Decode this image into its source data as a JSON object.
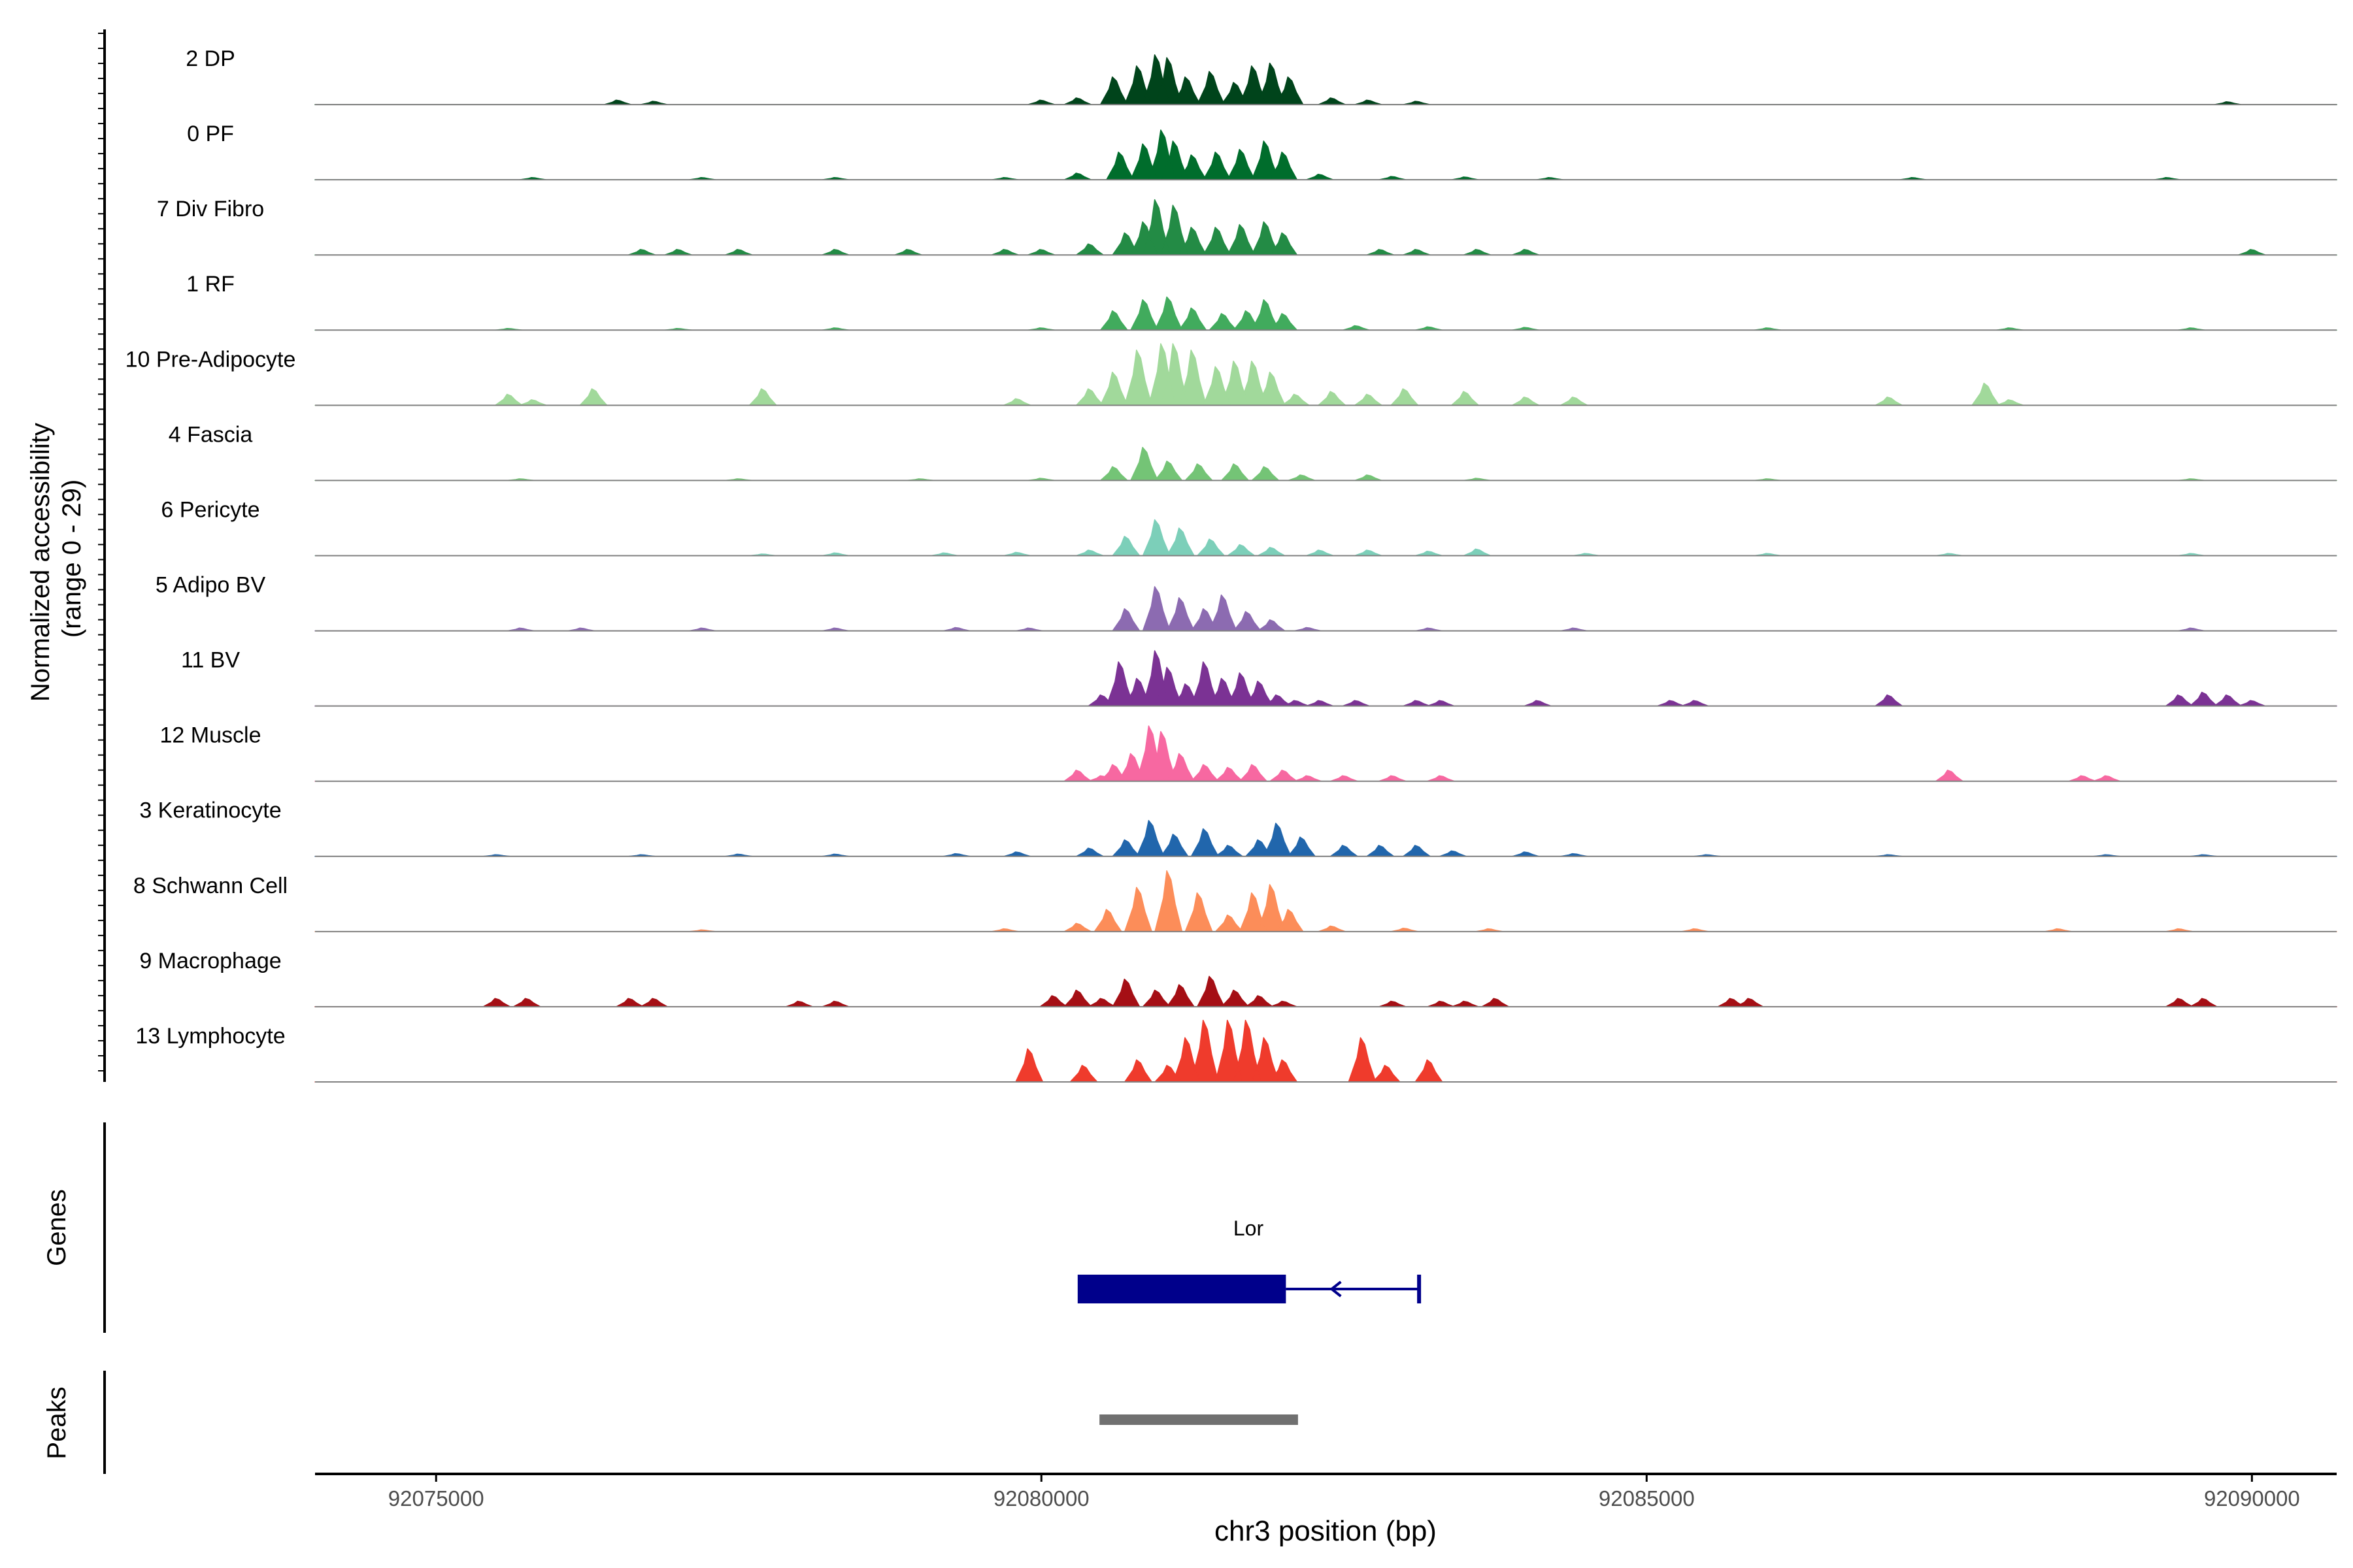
{
  "chart_data": {
    "type": "area",
    "title": "",
    "ylabel_line1": "Normalized accessibility",
    "ylabel_line2": "(range 0 - 29)",
    "xlabel": "chr3 position (bp)",
    "xlim": [
      92074000,
      92090700
    ],
    "xticks": [
      92075000,
      92080000,
      92085000,
      92090000
    ],
    "xtick_labels": [
      "92075000",
      "92080000",
      "92085000",
      "92090000"
    ],
    "ylim": [
      0,
      29
    ],
    "grid": false,
    "tracks": [
      {
        "name": "2 DP",
        "color": "#00441b",
        "peaks": [
          [
            92076500,
            0.8
          ],
          [
            92076800,
            0.6
          ],
          [
            92080000,
            0.8
          ],
          [
            92080300,
            1.2
          ],
          [
            92080600,
            5
          ],
          [
            92080800,
            7
          ],
          [
            92080950,
            9
          ],
          [
            92081050,
            8.5
          ],
          [
            92081200,
            5
          ],
          [
            92081400,
            6
          ],
          [
            92081600,
            4
          ],
          [
            92081750,
            7
          ],
          [
            92081900,
            7.5
          ],
          [
            92082050,
            5
          ],
          [
            92082400,
            1.2
          ],
          [
            92082700,
            0.8
          ],
          [
            92083100,
            0.6
          ],
          [
            92089800,
            0.5
          ]
        ]
      },
      {
        "name": "0 PF",
        "color": "#006d2c",
        "peaks": [
          [
            92075800,
            0.4
          ],
          [
            92077200,
            0.4
          ],
          [
            92078300,
            0.4
          ],
          [
            92079700,
            0.4
          ],
          [
            92080300,
            1.2
          ],
          [
            92080650,
            5
          ],
          [
            92080850,
            6.5
          ],
          [
            92081000,
            9
          ],
          [
            92081100,
            7
          ],
          [
            92081250,
            4.5
          ],
          [
            92081450,
            5
          ],
          [
            92081650,
            5.5
          ],
          [
            92081850,
            7
          ],
          [
            92082000,
            5
          ],
          [
            92082300,
            1
          ],
          [
            92082900,
            0.6
          ],
          [
            92083500,
            0.5
          ],
          [
            92084200,
            0.4
          ],
          [
            92087200,
            0.4
          ],
          [
            92089300,
            0.4
          ]
        ]
      },
      {
        "name": "7 Div Fibro",
        "color": "#238b45",
        "peaks": [
          [
            92076700,
            1
          ],
          [
            92077000,
            1
          ],
          [
            92077500,
            1
          ],
          [
            92078300,
            1
          ],
          [
            92078900,
            1
          ],
          [
            92079700,
            1
          ],
          [
            92080000,
            1
          ],
          [
            92080400,
            2
          ],
          [
            92080700,
            4
          ],
          [
            92080850,
            6
          ],
          [
            92080950,
            10
          ],
          [
            92081100,
            9
          ],
          [
            92081250,
            5
          ],
          [
            92081450,
            5
          ],
          [
            92081650,
            5.5
          ],
          [
            92081850,
            6
          ],
          [
            92082000,
            4
          ],
          [
            92082800,
            1
          ],
          [
            92083100,
            1
          ],
          [
            92083600,
            1
          ],
          [
            92084000,
            1
          ],
          [
            92090000,
            1
          ]
        ]
      },
      {
        "name": "1 RF",
        "color": "#41ab5d",
        "peaks": [
          [
            92075600,
            0.3
          ],
          [
            92077000,
            0.3
          ],
          [
            92078300,
            0.4
          ],
          [
            92080000,
            0.4
          ],
          [
            92080600,
            3.5
          ],
          [
            92080850,
            5.5
          ],
          [
            92081050,
            6
          ],
          [
            92081250,
            4
          ],
          [
            92081500,
            3
          ],
          [
            92081700,
            3.5
          ],
          [
            92081850,
            5.5
          ],
          [
            92082000,
            3
          ],
          [
            92082600,
            0.8
          ],
          [
            92083200,
            0.6
          ],
          [
            92084000,
            0.5
          ],
          [
            92086000,
            0.4
          ],
          [
            92088000,
            0.4
          ],
          [
            92089500,
            0.4
          ]
        ]
      },
      {
        "name": "10 Pre-Adipocyte",
        "color": "#a1d99b",
        "peaks": [
          [
            92075600,
            2
          ],
          [
            92075800,
            1
          ],
          [
            92076300,
            3
          ],
          [
            92077700,
            3
          ],
          [
            92079800,
            1.2
          ],
          [
            92080400,
            3
          ],
          [
            92080600,
            6
          ],
          [
            92080800,
            10
          ],
          [
            92081000,
            13
          ],
          [
            92081100,
            16
          ],
          [
            92081250,
            10
          ],
          [
            92081450,
            7
          ],
          [
            92081600,
            8
          ],
          [
            92081750,
            8
          ],
          [
            92081900,
            6
          ],
          [
            92082100,
            2
          ],
          [
            92082400,
            2.5
          ],
          [
            92082700,
            2
          ],
          [
            92083000,
            3
          ],
          [
            92083500,
            2.5
          ],
          [
            92084000,
            1.5
          ],
          [
            92084400,
            1.5
          ],
          [
            92087000,
            1.5
          ],
          [
            92087800,
            4
          ],
          [
            92088000,
            1
          ]
        ]
      },
      {
        "name": "4 Fascia",
        "color": "#74c476",
        "peaks": [
          [
            92075700,
            0.3
          ],
          [
            92077500,
            0.3
          ],
          [
            92079000,
            0.3
          ],
          [
            92080000,
            0.4
          ],
          [
            92080600,
            2.5
          ],
          [
            92080850,
            6
          ],
          [
            92081050,
            3.5
          ],
          [
            92081300,
            3
          ],
          [
            92081600,
            3
          ],
          [
            92081850,
            2.5
          ],
          [
            92082150,
            1
          ],
          [
            92082700,
            1
          ],
          [
            92083600,
            0.4
          ],
          [
            92086000,
            0.3
          ],
          [
            92089500,
            0.3
          ]
        ]
      },
      {
        "name": "6 Pericyte",
        "color": "#7ccfb9",
        "peaks": [
          [
            92077700,
            0.3
          ],
          [
            92078300,
            0.5
          ],
          [
            92079200,
            0.5
          ],
          [
            92079800,
            0.6
          ],
          [
            92080400,
            1
          ],
          [
            92080700,
            3.5
          ],
          [
            92080950,
            6.5
          ],
          [
            92081150,
            5
          ],
          [
            92081400,
            3
          ],
          [
            92081650,
            2
          ],
          [
            92081900,
            1.5
          ],
          [
            92082300,
            1
          ],
          [
            92082700,
            1
          ],
          [
            92083200,
            0.8
          ],
          [
            92083600,
            1.2
          ],
          [
            92084500,
            0.4
          ],
          [
            92086000,
            0.4
          ],
          [
            92087500,
            0.4
          ],
          [
            92089500,
            0.4
          ]
        ]
      },
      {
        "name": "5 Adipo BV",
        "color": "#8c6bb1",
        "peaks": [
          [
            92075700,
            0.5
          ],
          [
            92076200,
            0.5
          ],
          [
            92077200,
            0.5
          ],
          [
            92078300,
            0.5
          ],
          [
            92079300,
            0.6
          ],
          [
            92079900,
            0.5
          ],
          [
            92080700,
            4
          ],
          [
            92080950,
            8
          ],
          [
            92081150,
            6
          ],
          [
            92081350,
            4
          ],
          [
            92081500,
            6.5
          ],
          [
            92081700,
            3.5
          ],
          [
            92081900,
            2
          ],
          [
            92082200,
            0.6
          ],
          [
            92083200,
            0.5
          ],
          [
            92084400,
            0.5
          ],
          [
            92089500,
            0.5
          ]
        ]
      },
      {
        "name": "11 BV",
        "color": "#7b3294",
        "peaks": [
          [
            92080500,
            2
          ],
          [
            92080650,
            8
          ],
          [
            92080800,
            5
          ],
          [
            92080950,
            10
          ],
          [
            92081050,
            7
          ],
          [
            92081200,
            4
          ],
          [
            92081350,
            8
          ],
          [
            92081500,
            5
          ],
          [
            92081650,
            6
          ],
          [
            92081800,
            4.5
          ],
          [
            92081950,
            2
          ],
          [
            92082100,
            1
          ],
          [
            92082300,
            1
          ],
          [
            92082600,
            1
          ],
          [
            92083100,
            1
          ],
          [
            92083300,
            1
          ],
          [
            92084100,
            1
          ],
          [
            92085200,
            1
          ],
          [
            92085400,
            1
          ],
          [
            92087000,
            2
          ],
          [
            92089400,
            2
          ],
          [
            92089600,
            2.5
          ],
          [
            92089800,
            2
          ],
          [
            92090000,
            1
          ]
        ]
      },
      {
        "name": "12 Muscle",
        "color": "#f768a1",
        "peaks": [
          [
            92080300,
            2
          ],
          [
            92080500,
            1
          ],
          [
            92080600,
            3
          ],
          [
            92080750,
            5
          ],
          [
            92080900,
            10
          ],
          [
            92081000,
            9
          ],
          [
            92081150,
            5
          ],
          [
            92081350,
            3
          ],
          [
            92081550,
            2.5
          ],
          [
            92081750,
            3
          ],
          [
            92082000,
            2
          ],
          [
            92082200,
            1
          ],
          [
            92082500,
            1
          ],
          [
            92082900,
            1
          ],
          [
            92083300,
            1
          ],
          [
            92087500,
            2
          ],
          [
            92088600,
            1
          ],
          [
            92088800,
            1
          ]
        ]
      },
      {
        "name": "3 Keratinocyte",
        "color": "#2166ac",
        "peaks": [
          [
            92075500,
            0.3
          ],
          [
            92076700,
            0.3
          ],
          [
            92077500,
            0.4
          ],
          [
            92078300,
            0.4
          ],
          [
            92079300,
            0.5
          ],
          [
            92079800,
            0.8
          ],
          [
            92080400,
            1.5
          ],
          [
            92080700,
            3
          ],
          [
            92080900,
            6.5
          ],
          [
            92081100,
            4
          ],
          [
            92081350,
            5
          ],
          [
            92081550,
            2
          ],
          [
            92081800,
            3
          ],
          [
            92081950,
            6
          ],
          [
            92082150,
            3.5
          ],
          [
            92082500,
            2
          ],
          [
            92082800,
            2
          ],
          [
            92083100,
            2
          ],
          [
            92083400,
            1
          ],
          [
            92084000,
            0.8
          ],
          [
            92084400,
            0.5
          ],
          [
            92085500,
            0.3
          ],
          [
            92087000,
            0.3
          ],
          [
            92088800,
            0.3
          ],
          [
            92089600,
            0.3
          ]
        ]
      },
      {
        "name": "8 Schwann Cell",
        "color": "#fc8d59",
        "peaks": [
          [
            92077200,
            0.3
          ],
          [
            92079700,
            0.5
          ],
          [
            92080300,
            1.5
          ],
          [
            92080550,
            4
          ],
          [
            92080800,
            8
          ],
          [
            92081050,
            11
          ],
          [
            92081300,
            7
          ],
          [
            92081550,
            3
          ],
          [
            92081750,
            7
          ],
          [
            92081900,
            8.5
          ],
          [
            92082050,
            4
          ],
          [
            92082400,
            1
          ],
          [
            92083000,
            0.6
          ],
          [
            92083700,
            0.5
          ],
          [
            92085400,
            0.5
          ],
          [
            92088400,
            0.5
          ],
          [
            92089400,
            0.5
          ]
        ]
      },
      {
        "name": "9 Macrophage",
        "color": "#a50f15",
        "peaks": [
          [
            92075500,
            1.5
          ],
          [
            92075750,
            1.5
          ],
          [
            92076600,
            1.5
          ],
          [
            92076800,
            1.5
          ],
          [
            92078000,
            1
          ],
          [
            92078300,
            1
          ],
          [
            92080100,
            2
          ],
          [
            92080300,
            3
          ],
          [
            92080500,
            1.5
          ],
          [
            92080700,
            5
          ],
          [
            92080950,
            3
          ],
          [
            92081150,
            4
          ],
          [
            92081400,
            5.5
          ],
          [
            92081600,
            3
          ],
          [
            92081800,
            2
          ],
          [
            92082000,
            1
          ],
          [
            92082900,
            1
          ],
          [
            92083300,
            1
          ],
          [
            92083500,
            1
          ],
          [
            92083750,
            1.5
          ],
          [
            92085700,
            1.5
          ],
          [
            92085850,
            1.5
          ],
          [
            92089400,
            1.5
          ],
          [
            92089600,
            1.5
          ]
        ]
      },
      {
        "name": "13 Lymphocyte",
        "color": "#ef3b2c",
        "peaks": [
          [
            92079900,
            6
          ],
          [
            92080350,
            3
          ],
          [
            92080800,
            4
          ],
          [
            92081050,
            3
          ],
          [
            92081200,
            8
          ],
          [
            92081350,
            12
          ],
          [
            92081550,
            17
          ],
          [
            92081700,
            15
          ],
          [
            92081850,
            8
          ],
          [
            92082000,
            4
          ],
          [
            92082650,
            8
          ],
          [
            92082850,
            3
          ],
          [
            92083200,
            4
          ]
        ]
      }
    ],
    "genes_label": "Genes",
    "gene": {
      "name": "Lor",
      "utr_start": 92080300,
      "utr_end": 92082020,
      "tx_end": 92083120,
      "strand": "-",
      "color": "#00008b"
    },
    "peaks_label": "Peaks",
    "peak_region": {
      "start": 92080480,
      "end": 92082120,
      "color": "#707070"
    }
  }
}
